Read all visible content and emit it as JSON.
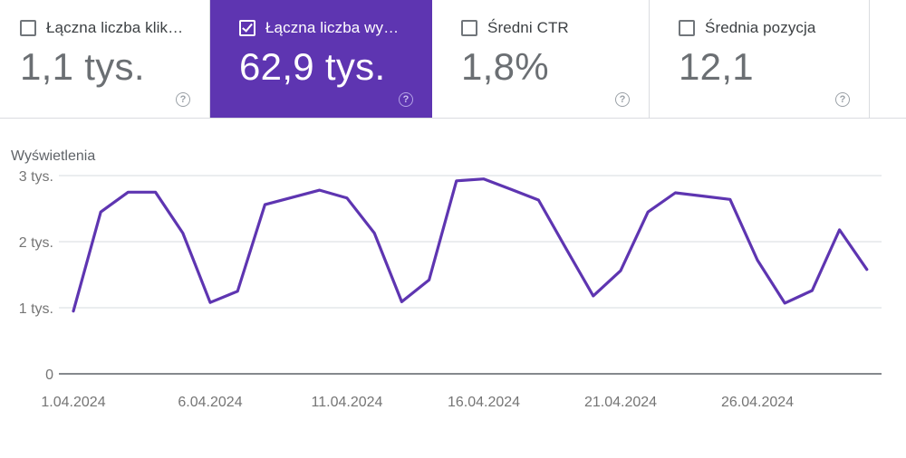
{
  "cards": [
    {
      "label": "Łączna liczba klik…",
      "value": "1,1 tys.",
      "checked": false,
      "selected": false
    },
    {
      "label": "Łączna liczba wy…",
      "value": "62,9 tys.",
      "checked": true,
      "selected": true
    },
    {
      "label": "Średni CTR",
      "value": "1,8%",
      "checked": false,
      "selected": false
    },
    {
      "label": "Średnia pozycja",
      "value": "12,1",
      "checked": false,
      "selected": false
    }
  ],
  "help_glyph": "?",
  "colors": {
    "selected_card_bg": "#5e35b1",
    "line": "#5e35b1",
    "divider": "#dadce0",
    "card_label": "#3c4043",
    "card_value_gray": "#6b6f73",
    "tick_gray": "#757575",
    "help_gray": "#9aa0a6"
  },
  "chart_data": {
    "type": "line",
    "title": "Wyświetlenia",
    "series_name": "Wyświetlenia",
    "x": [
      "1.04.2024",
      "2.04.2024",
      "3.04.2024",
      "4.04.2024",
      "5.04.2024",
      "6.04.2024",
      "7.04.2024",
      "8.04.2024",
      "9.04.2024",
      "10.04.2024",
      "11.04.2024",
      "12.04.2024",
      "13.04.2024",
      "14.04.2024",
      "15.04.2024",
      "16.04.2024",
      "17.04.2024",
      "18.04.2024",
      "19.04.2024",
      "20.04.2024",
      "21.04.2024",
      "22.04.2024",
      "23.04.2024",
      "24.04.2024",
      "25.04.2024",
      "26.04.2024",
      "27.04.2024",
      "28.04.2024",
      "29.04.2024",
      "30.04.2024"
    ],
    "values": [
      950,
      2450,
      2750,
      2750,
      2130,
      1080,
      1250,
      2560,
      2670,
      2780,
      2660,
      2130,
      1090,
      1420,
      2920,
      2950,
      2790,
      2630,
      1900,
      1180,
      1560,
      2450,
      2740,
      2690,
      2640,
      1720,
      1070,
      1260,
      2180,
      1580
    ],
    "x_tick_labels": [
      "1.04.2024",
      "6.04.2024",
      "11.04.2024",
      "16.04.2024",
      "21.04.2024",
      "26.04.2024"
    ],
    "y_tick_labels": [
      "3 tys.",
      "2 tys.",
      "1 tys.",
      "0"
    ],
    "y_tick_values": [
      3000,
      2000,
      1000,
      0
    ],
    "ylim": [
      0,
      3000
    ],
    "grid": "horizontal",
    "legend": "none",
    "line_color": "#5e35b1"
  }
}
